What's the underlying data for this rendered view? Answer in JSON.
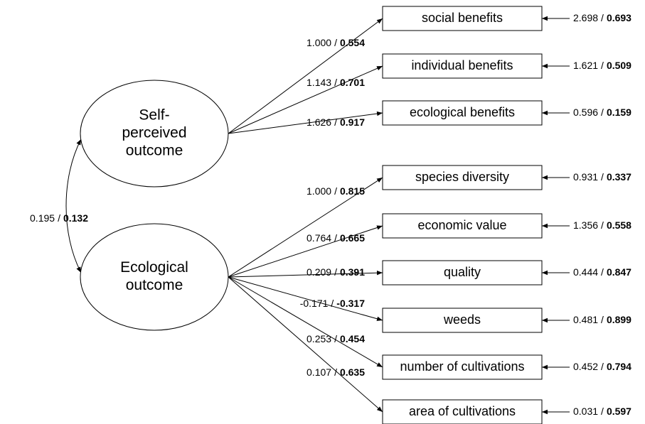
{
  "separator": "/",
  "covariance": {
    "unstd": "0.195",
    "std": "0.132"
  },
  "latents": [
    {
      "label_lines": [
        "Self-",
        "perceived",
        "outcome"
      ],
      "indicators": [
        {
          "label": "social benefits",
          "loading": {
            "unstd": "1.000",
            "std": "0.554"
          },
          "error": {
            "unstd": "2.698",
            "std": "0.693"
          }
        },
        {
          "label": "individual benefits",
          "loading": {
            "unstd": "1.143",
            "std": "0.701"
          },
          "error": {
            "unstd": "1.621",
            "std": "0.509"
          }
        },
        {
          "label": "ecological benefits",
          "loading": {
            "unstd": "1.626",
            "std": "0.917"
          },
          "error": {
            "unstd": "0.596",
            "std": "0.159"
          }
        }
      ]
    },
    {
      "label_lines": [
        "Ecological",
        "outcome"
      ],
      "indicators": [
        {
          "label": "species diversity",
          "loading": {
            "unstd": "1.000",
            "std": "0.815"
          },
          "error": {
            "unstd": "0.931",
            "std": "0.337"
          }
        },
        {
          "label": "economic value",
          "loading": {
            "unstd": "0.764",
            "std": "0.665"
          },
          "error": {
            "unstd": "1.356",
            "std": "0.558"
          }
        },
        {
          "label": "quality",
          "loading": {
            "unstd": "0.209",
            "std": "0.391"
          },
          "error": {
            "unstd": "0.444",
            "std": "0.847"
          }
        },
        {
          "label": "weeds",
          "loading": {
            "unstd": "-0.171",
            "std": "-0.317"
          },
          "error": {
            "unstd": "0.481",
            "std": "0.899"
          }
        },
        {
          "label": "number of cultivations",
          "loading": {
            "unstd": "0.253",
            "std": "0.454"
          },
          "error": {
            "unstd": "0.452",
            "std": "0.794"
          }
        },
        {
          "label": "area of cultivations",
          "loading": {
            "unstd": "0.107",
            "std": "0.635"
          },
          "error": {
            "unstd": "0.031",
            "std": "0.597"
          }
        }
      ]
    }
  ]
}
